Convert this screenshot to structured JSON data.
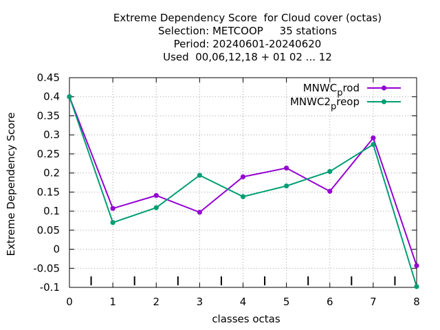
{
  "chart_data": {
    "type": "line",
    "title_lines": [
      "Extreme Dependency Score  for Cloud cover (octas)",
      "Selection: METCOOP     35 stations",
      "Period: 20240601-20240620",
      "Used  00,06,12,18 + 01 02 ... 12"
    ],
    "xlabel": "classes octas",
    "ylabel": "Extreme Dependency Score",
    "x": [
      0,
      1,
      2,
      3,
      4,
      5,
      6,
      7,
      8
    ],
    "xlim": [
      0,
      8
    ],
    "ylim": [
      -0.1,
      0.45
    ],
    "xticks": [
      "0",
      "1",
      "2",
      "3",
      "4",
      "5",
      "6",
      "7",
      "8"
    ],
    "yticks": [
      "-0.1",
      "-0.05",
      "0",
      "0.05",
      "0.1",
      "0.15",
      "0.2",
      "0.25",
      "0.3",
      "0.35",
      "0.4",
      "0.45"
    ],
    "grid": true,
    "legend_position": "top-right",
    "series": [
      {
        "name": "MNWC_prod",
        "legend_main": "MNWC",
        "legend_sub": "p",
        "legend_rest": "rod",
        "color": "#9400d3",
        "values": [
          0.4,
          0.107,
          0.141,
          0.097,
          0.19,
          0.213,
          0.152,
          0.292,
          -0.043
        ]
      },
      {
        "name": "MNWC2_preop",
        "legend_main": "MNWC2",
        "legend_sub": "p",
        "legend_rest": "reop",
        "color": "#009e73",
        "values": [
          0.4,
          0.07,
          0.109,
          0.194,
          0.138,
          0.166,
          0.204,
          0.275,
          -0.098
        ]
      }
    ],
    "minor_tick_marks_x": [
      0.5,
      1.5,
      2.5,
      3.5,
      4.5,
      5.5,
      6.5,
      7.5
    ]
  }
}
